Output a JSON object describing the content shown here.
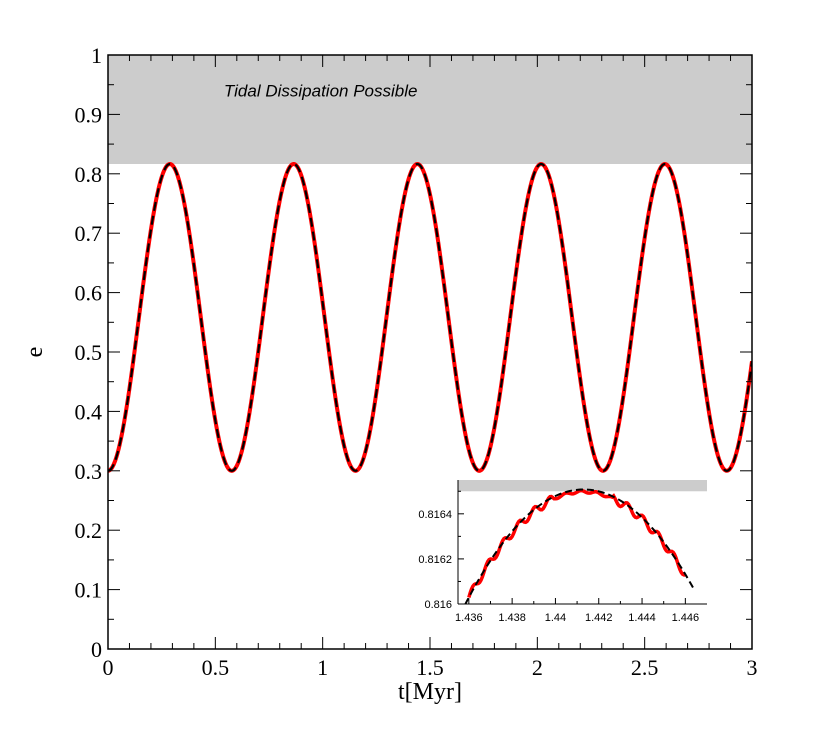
{
  "chart_data": [
    {
      "type": "line",
      "title": "",
      "xlabel": "t[Myr]",
      "ylabel": "e",
      "xlim": [
        0,
        3
      ],
      "ylim": [
        0,
        1
      ],
      "x_ticks": [
        "0",
        "0.5",
        "1",
        "1.5",
        "2",
        "2.5",
        "3"
      ],
      "y_ticks": [
        "0",
        "0.1",
        "0.2",
        "0.3",
        "0.4",
        "0.5",
        "0.6",
        "0.7",
        "0.8",
        "0.9",
        "1"
      ],
      "grid": false,
      "shaded_region": {
        "y_from": 0.8165,
        "y_to": 1.0,
        "color": "#cccccc"
      },
      "annotation": "Tidal Dissipation Possible",
      "oscillation": {
        "e_min": 0.3,
        "e_max": 0.8165,
        "period_myr": 0.5765
      },
      "series": [
        {
          "style": "solid",
          "color": "#ff0000",
          "x": [
            0,
            0.144,
            0.288,
            0.432,
            0.577,
            0.721,
            0.865,
            1.009,
            1.153,
            1.297,
            1.441,
            1.585,
            1.73,
            1.874,
            2.018,
            2.162,
            2.306,
            2.45,
            2.594,
            2.738,
            2.883,
            3.0
          ],
          "values": [
            0.3,
            0.558,
            0.8165,
            0.558,
            0.3,
            0.558,
            0.8165,
            0.558,
            0.3,
            0.558,
            0.8165,
            0.558,
            0.3,
            0.558,
            0.8165,
            0.558,
            0.3,
            0.558,
            0.8165,
            0.558,
            0.3,
            0.47
          ]
        },
        {
          "style": "dashed",
          "color": "#000000",
          "x": [
            0,
            0.144,
            0.288,
            0.432,
            0.577,
            0.721,
            0.865,
            1.009,
            1.153,
            1.297,
            1.441,
            1.585,
            1.73,
            1.874,
            2.018,
            2.162,
            2.306,
            2.45,
            2.594,
            2.738,
            2.883,
            3.0
          ],
          "values": [
            0.3,
            0.558,
            0.8165,
            0.558,
            0.3,
            0.558,
            0.8165,
            0.558,
            0.3,
            0.558,
            0.8165,
            0.558,
            0.3,
            0.558,
            0.8165,
            0.558,
            0.3,
            0.558,
            0.8165,
            0.558,
            0.3,
            0.47
          ]
        }
      ]
    },
    {
      "type": "line",
      "title": "",
      "xlabel": "",
      "ylabel": "",
      "xlim": [
        1.4355,
        1.447
      ],
      "ylim": [
        0.816,
        0.81655
      ],
      "x_ticks": [
        "1.436",
        "1.438",
        "1.44",
        "1.442",
        "1.444",
        "1.446"
      ],
      "y_ticks": [
        "0.816",
        "0.8162",
        "0.8164"
      ],
      "grid": false,
      "shaded_region": {
        "y_from": 0.8165,
        "y_to": 0.81655,
        "color": "#cccccc"
      },
      "peak": {
        "x": 1.4413,
        "dashed_value": 0.816508,
        "solid_value": 0.816498
      },
      "series": [
        {
          "style": "solid-stepped",
          "color": "#ff0000",
          "x": [
            1.436,
            1.4375,
            1.439,
            1.4405,
            1.4413,
            1.442,
            1.4435,
            1.445,
            1.446
          ],
          "values": [
            0.816,
            0.81625,
            0.8164,
            0.816495,
            0.816498,
            0.816495,
            0.8164,
            0.81625,
            0.816
          ]
        },
        {
          "style": "dashed",
          "color": "#000000",
          "x": [
            1.436,
            1.4375,
            1.439,
            1.4405,
            1.4413,
            1.442,
            1.4435,
            1.445,
            1.446
          ],
          "values": [
            0.816,
            0.81628,
            0.81643,
            0.816505,
            0.816508,
            0.816505,
            0.81643,
            0.81628,
            0.816
          ]
        }
      ]
    }
  ]
}
